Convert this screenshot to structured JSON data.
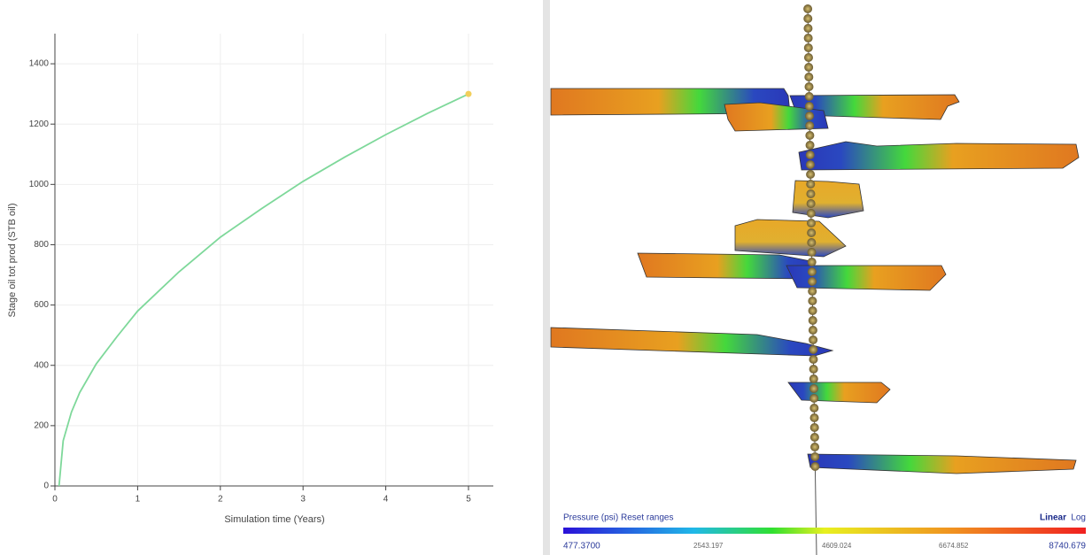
{
  "chart_data": {
    "type": "line",
    "x_label": "Simulation time (Years)",
    "y_label": "Stage oil tot prod (STB oil)",
    "x": [
      0.05,
      0.1,
      0.2,
      0.3,
      0.5,
      0.75,
      1,
      1.5,
      2,
      2.5,
      3,
      3.5,
      4,
      4.5,
      5
    ],
    "series": [
      {
        "color": "#7ed89a",
        "values": [
          0,
          150,
          245,
          310,
          405,
          495,
          580,
          710,
          825,
          920,
          1010,
          1090,
          1165,
          1235,
          1300
        ]
      }
    ],
    "end_marker_color": "#f2cf5b",
    "xlim": [
      0,
      5.3
    ],
    "ylim": [
      0,
      1500
    ],
    "xticks": [
      0,
      1,
      2,
      3,
      4,
      5
    ],
    "yticks": [
      0,
      200,
      400,
      600,
      800,
      1000,
      1200,
      1400
    ],
    "grid": true
  },
  "colorbar": {
    "title": "Pressure (psi)",
    "reset": "Reset ranges",
    "linear": "Linear",
    "log": "Log",
    "labels": [
      "477.3700",
      "2543.197",
      "4609.024",
      "6674.852",
      "8740.679"
    ]
  }
}
